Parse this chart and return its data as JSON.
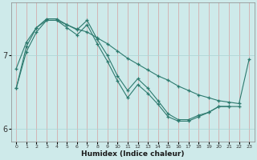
{
  "xlabel": "Humidex (Indice chaleur)",
  "bg_color": "#ceeaea",
  "grid_color": "#aad4d4",
  "line_color": "#2d7a6e",
  "xlim": [
    -0.5,
    23.5
  ],
  "ylim": [
    5.82,
    7.72
  ],
  "yticks": [
    6,
    7
  ],
  "xticks": [
    0,
    1,
    2,
    3,
    4,
    5,
    6,
    7,
    8,
    9,
    10,
    11,
    12,
    13,
    14,
    15,
    16,
    17,
    18,
    19,
    20,
    21,
    22,
    23
  ],
  "line1_x": [
    0,
    1,
    2,
    3,
    4,
    5,
    6,
    7,
    8,
    9,
    10,
    11,
    12,
    13,
    14,
    15,
    16,
    17,
    18,
    19,
    20,
    21,
    22,
    23
  ],
  "line1_y": [
    6.82,
    7.18,
    7.38,
    7.48,
    7.48,
    7.42,
    7.36,
    7.32,
    7.24,
    7.16,
    7.06,
    6.96,
    6.88,
    6.8,
    6.72,
    6.66,
    6.58,
    6.52,
    6.46,
    6.42,
    6.38,
    6.36,
    6.34,
    6.95
  ],
  "line2_x": [
    0,
    1,
    2,
    3,
    4,
    5,
    6,
    7,
    8,
    9,
    10,
    11,
    12,
    13,
    14,
    15,
    16,
    17,
    18,
    19,
    20,
    21,
    22
  ],
  "line2_y": [
    6.55,
    7.12,
    7.38,
    7.5,
    7.5,
    7.42,
    7.35,
    7.48,
    7.22,
    7.0,
    6.72,
    6.52,
    6.68,
    6.55,
    6.38,
    6.2,
    6.12,
    6.12,
    6.18,
    6.22,
    6.3,
    6.3,
    6.3
  ],
  "line3_x": [
    0,
    1,
    2,
    3,
    4,
    5,
    6,
    7,
    8,
    9,
    10,
    11,
    12,
    13,
    14,
    15,
    16,
    17,
    18,
    19,
    20,
    21
  ],
  "line3_y": [
    6.55,
    7.05,
    7.32,
    7.48,
    7.48,
    7.38,
    7.28,
    7.42,
    7.16,
    6.92,
    6.65,
    6.42,
    6.6,
    6.48,
    6.33,
    6.16,
    6.1,
    6.1,
    6.16,
    6.22,
    6.3,
    6.3
  ]
}
